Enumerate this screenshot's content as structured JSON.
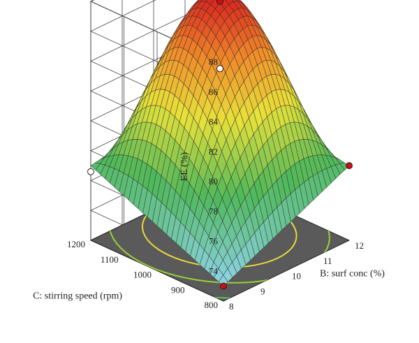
{
  "chart_data": {
    "type": "surface3d",
    "z_axis": {
      "label": "EE (%)",
      "range": [
        72,
        88
      ],
      "ticks": [
        74,
        76,
        78,
        80,
        82,
        84,
        86,
        88
      ]
    },
    "b_axis": {
      "label": "B: surf conc (%)",
      "range": [
        8,
        12
      ],
      "ticks": [
        8,
        9,
        10,
        11,
        12
      ]
    },
    "c_axis": {
      "label": "C: stirring speed (rpm)",
      "range": [
        800,
        1200
      ],
      "ticks": [
        800,
        900,
        1000,
        1100,
        1200
      ]
    },
    "surface_corners": [
      {
        "b": 8,
        "c": 800,
        "ee": 73.0
      },
      {
        "b": 12,
        "c": 800,
        "ee": 77.0
      },
      {
        "b": 8,
        "c": 1200,
        "ee": 77.0
      },
      {
        "b": 12,
        "c": 1200,
        "ee": 78.5
      }
    ],
    "surface_peak": {
      "b": 10.3,
      "c": 1030,
      "ee": 87.9
    },
    "design_points": [
      {
        "b": 10,
        "c": 1000,
        "ee": 88.0
      },
      {
        "b": 10,
        "c": 1000,
        "ee": 83.5
      },
      {
        "b": 8,
        "c": 800,
        "ee": 73.0
      },
      {
        "b": 8,
        "c": 1200,
        "ee": 76.6
      },
      {
        "b": 12,
        "c": 800,
        "ee": 77.0
      }
    ],
    "floor_contours": true,
    "grid": true,
    "colors": {
      "low": "#8fd3e8",
      "mid_low": "#4fb85a",
      "mid": "#e8e23a",
      "mid_high": "#f08a2a",
      "high": "#d81e1e",
      "floor": "#5a5a5a",
      "contour": [
        "#5fc9c9",
        "#5cc05a",
        "#9bd03a",
        "#e8d83a",
        "#f08a2a"
      ],
      "point_high": "#cc1010",
      "point_low": "#ffffff"
    }
  }
}
